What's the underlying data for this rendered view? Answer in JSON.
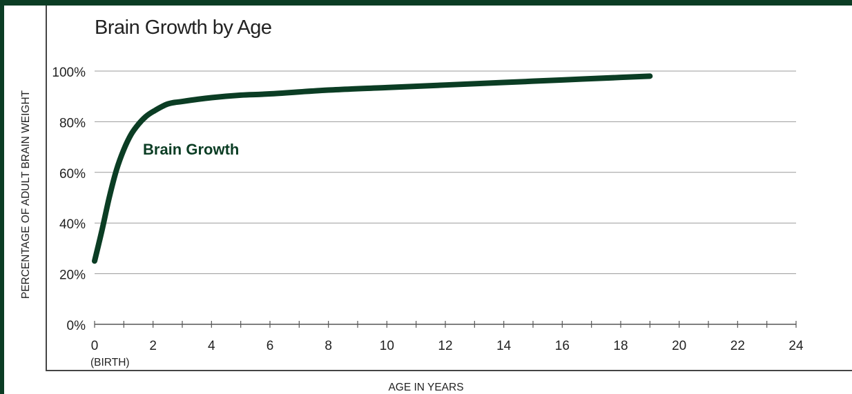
{
  "chart_data": {
    "type": "line",
    "title": "Brain Growth by Age",
    "xlabel": "AGE IN YEARS",
    "ylabel": "PERCENTAGE OF ADULT BRAIN WEIGHT",
    "xlim": [
      0,
      24
    ],
    "ylim": [
      0,
      100
    ],
    "x_ticks": [
      "0",
      "2",
      "4",
      "6",
      "8",
      "10",
      "12",
      "14",
      "16",
      "18",
      "20",
      "22",
      "24"
    ],
    "x_tick_sublabel": "(BIRTH)",
    "y_ticks": [
      "0%",
      "20%",
      "40%",
      "60%",
      "80%",
      "100%"
    ],
    "grid": "horizontal",
    "series": [
      {
        "name": "Brain Growth",
        "color": "#0b3d24",
        "x": [
          0,
          0.25,
          0.5,
          0.75,
          1,
          1.25,
          1.5,
          1.75,
          2,
          2.5,
          3,
          4,
          5,
          6,
          8,
          10,
          12,
          14,
          16,
          18,
          19
        ],
        "y": [
          25,
          37,
          50,
          61,
          69,
          75,
          79,
          82,
          84,
          87,
          88,
          89.5,
          90.5,
          91,
          92.5,
          93.5,
          94.5,
          95.5,
          96.5,
          97.5,
          98
        ]
      }
    ]
  }
}
